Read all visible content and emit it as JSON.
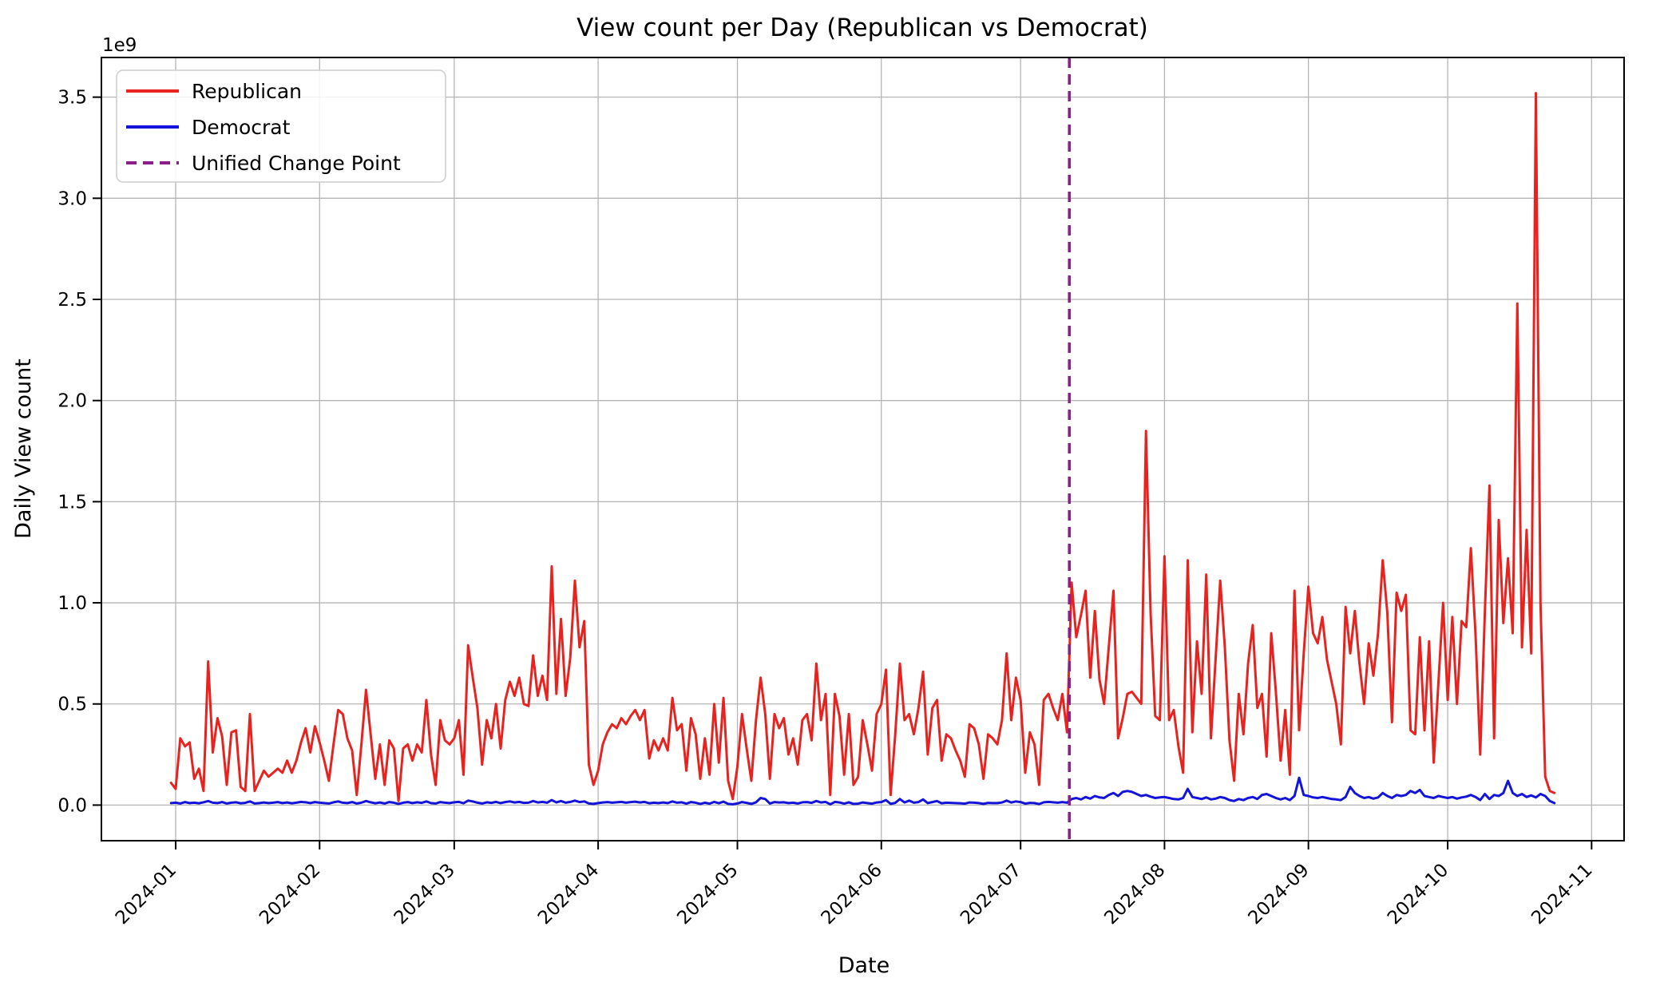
{
  "figure": {
    "background": "#ffffff",
    "grid_color": "#b5b5b5",
    "spine_color": "#000000"
  },
  "chart_data": {
    "type": "line",
    "title": "View count per Day (Republican vs Democrat)",
    "xlabel": "Date",
    "ylabel": "Daily View count",
    "offset_text": "1e9",
    "unit": "1e9 views per day",
    "grid": true,
    "legend_position": "upper left",
    "x_start_date": "2023-12-31",
    "frequency": "daily",
    "xlim_days": [
      -16,
      312
    ],
    "ylim": [
      -0.176,
      3.696
    ],
    "x_tick_labels": [
      "2024-01",
      "2024-02",
      "2024-03",
      "2024-04",
      "2024-05",
      "2024-06",
      "2024-07",
      "2024-08",
      "2024-09",
      "2024-10",
      "2024-11"
    ],
    "y_tick_labels": [
      "0.0",
      "0.5",
      "1.0",
      "1.5",
      "2.0",
      "2.5",
      "3.0",
      "3.5"
    ],
    "change_point": {
      "label": "Unified Change Point",
      "date": "2024-07-11",
      "color": "#8a1f8a",
      "style": "dashed"
    },
    "series": [
      {
        "name": "Republican",
        "color": "#e8231f",
        "values": [
          0.11,
          0.08,
          0.33,
          0.29,
          0.31,
          0.13,
          0.18,
          0.07,
          0.71,
          0.26,
          0.43,
          0.34,
          0.1,
          0.36,
          0.37,
          0.09,
          0.07,
          0.45,
          0.07,
          0.12,
          0.17,
          0.14,
          0.16,
          0.18,
          0.16,
          0.22,
          0.16,
          0.22,
          0.31,
          0.38,
          0.26,
          0.39,
          0.31,
          0.22,
          0.12,
          0.3,
          0.47,
          0.45,
          0.33,
          0.27,
          0.05,
          0.3,
          0.57,
          0.35,
          0.13,
          0.3,
          0.1,
          0.32,
          0.28,
          0.02,
          0.28,
          0.3,
          0.22,
          0.3,
          0.26,
          0.52,
          0.25,
          0.1,
          0.42,
          0.32,
          0.3,
          0.33,
          0.42,
          0.15,
          0.79,
          0.63,
          0.48,
          0.2,
          0.42,
          0.33,
          0.5,
          0.28,
          0.52,
          0.61,
          0.54,
          0.63,
          0.5,
          0.49,
          0.74,
          0.54,
          0.64,
          0.52,
          1.18,
          0.55,
          0.92,
          0.54,
          0.73,
          1.11,
          0.78,
          0.91,
          0.2,
          0.1,
          0.17,
          0.3,
          0.36,
          0.4,
          0.38,
          0.43,
          0.4,
          0.44,
          0.47,
          0.42,
          0.47,
          0.23,
          0.32,
          0.27,
          0.33,
          0.27,
          0.53,
          0.37,
          0.4,
          0.17,
          0.43,
          0.35,
          0.13,
          0.33,
          0.15,
          0.5,
          0.21,
          0.53,
          0.12,
          0.03,
          0.19,
          0.45,
          0.28,
          0.12,
          0.42,
          0.63,
          0.45,
          0.13,
          0.45,
          0.38,
          0.43,
          0.25,
          0.33,
          0.2,
          0.42,
          0.45,
          0.32,
          0.7,
          0.42,
          0.55,
          0.05,
          0.55,
          0.44,
          0.15,
          0.45,
          0.1,
          0.14,
          0.42,
          0.3,
          0.17,
          0.45,
          0.5,
          0.67,
          0.05,
          0.35,
          0.7,
          0.42,
          0.45,
          0.35,
          0.48,
          0.66,
          0.25,
          0.48,
          0.52,
          0.22,
          0.35,
          0.33,
          0.27,
          0.22,
          0.14,
          0.4,
          0.38,
          0.3,
          0.13,
          0.35,
          0.33,
          0.3,
          0.42,
          0.75,
          0.42,
          0.63,
          0.52,
          0.16,
          0.36,
          0.3,
          0.1,
          0.52,
          0.55,
          0.48,
          0.42,
          0.55,
          0.36,
          1.1,
          0.83,
          0.94,
          1.06,
          0.63,
          0.96,
          0.62,
          0.5,
          0.78,
          1.06,
          0.33,
          0.43,
          0.55,
          0.56,
          0.53,
          0.5,
          1.85,
          0.95,
          0.44,
          0.42,
          1.23,
          0.42,
          0.47,
          0.29,
          0.16,
          1.21,
          0.36,
          0.81,
          0.55,
          1.14,
          0.33,
          0.72,
          1.11,
          0.78,
          0.32,
          0.12,
          0.55,
          0.35,
          0.7,
          0.89,
          0.48,
          0.55,
          0.24,
          0.85,
          0.56,
          0.22,
          0.47,
          0.15,
          1.06,
          0.37,
          0.75,
          1.08,
          0.85,
          0.8,
          0.93,
          0.72,
          0.61,
          0.5,
          0.3,
          0.98,
          0.75,
          0.96,
          0.7,
          0.5,
          0.8,
          0.64,
          0.85,
          1.21,
          0.95,
          0.41,
          1.05,
          0.96,
          1.04,
          0.37,
          0.35,
          0.83,
          0.37,
          0.81,
          0.21,
          0.6,
          1.0,
          0.52,
          0.93,
          0.5,
          0.91,
          0.88,
          1.27,
          0.84,
          0.25,
          0.95,
          1.58,
          0.33,
          1.41,
          0.9,
          1.22,
          0.85,
          2.48,
          0.78,
          1.36,
          0.75,
          3.52,
          1.0,
          0.14,
          0.07,
          0.06
        ]
      },
      {
        "name": "Democrat",
        "color": "#1414d8",
        "values": [
          0.01,
          0.012,
          0.008,
          0.015,
          0.01,
          0.012,
          0.009,
          0.014,
          0.02,
          0.012,
          0.01,
          0.015,
          0.008,
          0.012,
          0.014,
          0.009,
          0.011,
          0.018,
          0.008,
          0.01,
          0.013,
          0.01,
          0.012,
          0.015,
          0.01,
          0.013,
          0.009,
          0.012,
          0.016,
          0.014,
          0.01,
          0.015,
          0.012,
          0.01,
          0.008,
          0.014,
          0.018,
          0.012,
          0.01,
          0.015,
          0.008,
          0.012,
          0.02,
          0.014,
          0.009,
          0.013,
          0.008,
          0.015,
          0.012,
          0.006,
          0.012,
          0.015,
          0.01,
          0.014,
          0.011,
          0.018,
          0.01,
          0.008,
          0.015,
          0.012,
          0.01,
          0.014,
          0.016,
          0.009,
          0.022,
          0.018,
          0.012,
          0.008,
          0.014,
          0.011,
          0.016,
          0.01,
          0.015,
          0.018,
          0.013,
          0.016,
          0.011,
          0.012,
          0.02,
          0.013,
          0.016,
          0.012,
          0.025,
          0.013,
          0.02,
          0.012,
          0.016,
          0.022,
          0.015,
          0.018,
          0.008,
          0.006,
          0.01,
          0.013,
          0.015,
          0.012,
          0.014,
          0.016,
          0.012,
          0.015,
          0.017,
          0.013,
          0.016,
          0.009,
          0.012,
          0.01,
          0.013,
          0.01,
          0.018,
          0.012,
          0.014,
          0.007,
          0.015,
          0.012,
          0.006,
          0.012,
          0.007,
          0.016,
          0.009,
          0.017,
          0.006,
          0.004,
          0.008,
          0.015,
          0.011,
          0.006,
          0.014,
          0.035,
          0.03,
          0.008,
          0.015,
          0.013,
          0.014,
          0.01,
          0.012,
          0.008,
          0.014,
          0.015,
          0.011,
          0.02,
          0.013,
          0.016,
          0.004,
          0.016,
          0.013,
          0.007,
          0.014,
          0.006,
          0.007,
          0.013,
          0.01,
          0.007,
          0.013,
          0.015,
          0.025,
          0.006,
          0.011,
          0.03,
          0.013,
          0.022,
          0.012,
          0.015,
          0.028,
          0.01,
          0.015,
          0.02,
          0.009,
          0.012,
          0.011,
          0.01,
          0.009,
          0.007,
          0.013,
          0.012,
          0.01,
          0.006,
          0.011,
          0.01,
          0.01,
          0.013,
          0.022,
          0.013,
          0.018,
          0.015,
          0.007,
          0.011,
          0.01,
          0.005,
          0.014,
          0.016,
          0.014,
          0.012,
          0.015,
          0.012,
          0.03,
          0.035,
          0.028,
          0.04,
          0.032,
          0.045,
          0.038,
          0.035,
          0.05,
          0.06,
          0.045,
          0.065,
          0.07,
          0.065,
          0.055,
          0.045,
          0.05,
          0.042,
          0.035,
          0.038,
          0.04,
          0.035,
          0.03,
          0.028,
          0.035,
          0.08,
          0.04,
          0.035,
          0.03,
          0.038,
          0.028,
          0.032,
          0.04,
          0.035,
          0.025,
          0.02,
          0.03,
          0.025,
          0.035,
          0.04,
          0.03,
          0.05,
          0.055,
          0.045,
          0.035,
          0.028,
          0.035,
          0.025,
          0.045,
          0.135,
          0.05,
          0.045,
          0.038,
          0.035,
          0.04,
          0.035,
          0.03,
          0.028,
          0.025,
          0.04,
          0.09,
          0.06,
          0.045,
          0.035,
          0.04,
          0.032,
          0.038,
          0.06,
          0.045,
          0.035,
          0.05,
          0.045,
          0.05,
          0.07,
          0.06,
          0.075,
          0.045,
          0.04,
          0.035,
          0.045,
          0.04,
          0.035,
          0.04,
          0.032,
          0.038,
          0.042,
          0.05,
          0.04,
          0.025,
          0.055,
          0.03,
          0.05,
          0.045,
          0.06,
          0.12,
          0.06,
          0.045,
          0.055,
          0.04,
          0.048,
          0.038,
          0.055,
          0.045,
          0.02,
          0.01
        ]
      }
    ]
  }
}
